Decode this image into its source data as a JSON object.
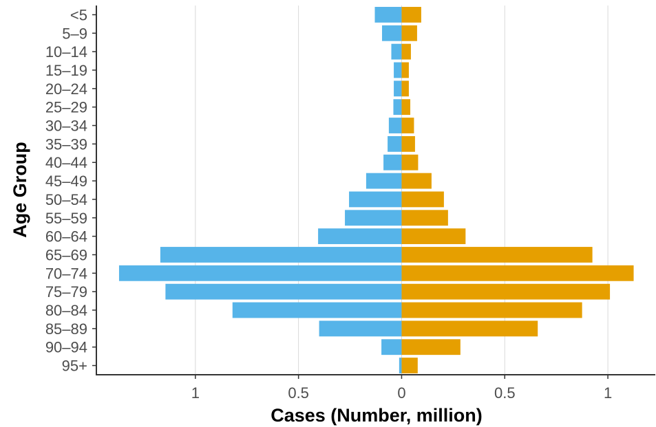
{
  "chart_data": {
    "type": "bar",
    "orientation": "horizontal",
    "layout": "population-pyramid",
    "xlabel": "Cases (Number, million)",
    "ylabel": "Age Group",
    "xlim": [
      -1.48,
      1.23
    ],
    "x_ticks": [
      -1,
      -0.5,
      0,
      0.5,
      1
    ],
    "x_tick_labels": [
      "1",
      "0.5",
      "0",
      "0.5",
      "1"
    ],
    "grid": "vertical",
    "legend": "none",
    "categories": [
      "<5",
      "5–9",
      "10–14",
      "15–19",
      "20–24",
      "25–29",
      "30–34",
      "35–39",
      "40–44",
      "45–49",
      "50–54",
      "55–59",
      "60–64",
      "65–69",
      "70–74",
      "75–79",
      "80–84",
      "85–89",
      "90–94",
      "95+"
    ],
    "series": [
      {
        "side": "left",
        "color": "#56b4e9",
        "values": [
          0.13,
          0.095,
          0.05,
          0.038,
          0.038,
          0.04,
          0.062,
          0.068,
          0.088,
          0.172,
          0.255,
          0.275,
          0.405,
          1.17,
          1.37,
          1.145,
          0.82,
          0.4,
          0.098,
          0.012
        ]
      },
      {
        "side": "right",
        "color": "#e69f00",
        "values": [
          0.095,
          0.075,
          0.045,
          0.035,
          0.035,
          0.042,
          0.06,
          0.065,
          0.08,
          0.145,
          0.205,
          0.225,
          0.31,
          0.925,
          1.125,
          1.01,
          0.875,
          0.66,
          0.285,
          0.078
        ]
      }
    ]
  }
}
